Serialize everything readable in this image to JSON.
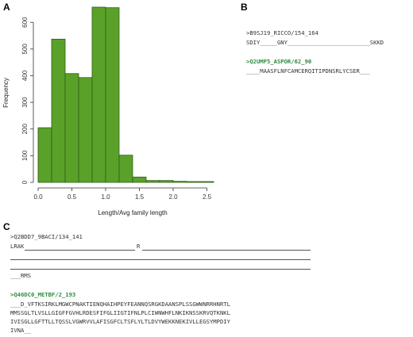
{
  "panels": {
    "a": "A",
    "b": "B",
    "c": "C"
  },
  "chart_data": {
    "type": "bar",
    "title": "",
    "xlabel": "Length/Avg family length",
    "ylabel": "Frequency",
    "xlim": [
      0,
      2.8
    ],
    "ylim": [
      0,
      660
    ],
    "xticks": [
      "0.0",
      "0.5",
      "1.0",
      "1.5",
      "2.0",
      "2.5"
    ],
    "yticks": [
      "0",
      "100",
      "200",
      "300",
      "400",
      "500",
      "600"
    ],
    "bin_edges": [
      0.0,
      0.2,
      0.4,
      0.6,
      0.8,
      1.0,
      1.2,
      1.4,
      1.6,
      1.8,
      2.0,
      2.2,
      2.4,
      2.6
    ],
    "values": [
      205,
      537,
      408,
      393,
      657,
      655,
      102,
      20,
      7,
      7,
      4,
      3,
      3
    ],
    "bar_color": "#5aa12a"
  },
  "panel_b": {
    "seq1_header": ">B9SJ19_RICCO/154_164",
    "seq1_line": "SDIY_____GNY________________________SKKD",
    "seq2_header": ">Q2UMP5_ASPOR/62_90",
    "seq2_line": "____MAASFLNFCAMCERQITIPDNSRLYCSER___"
  },
  "panel_c": {
    "seq1_header": ">Q2BDD7_9BACI/134_141",
    "seq1_line1_a": "LRAK",
    "seq1_line1_b": "R",
    "seq1_line4": "___RMS",
    "seq2_header": ">Q46DC0_METBF/2_193",
    "seq2_lines": [
      "___D_VFTKSIRKLMGWCPNAKTIENQHAIHPEYFEANNQSRGKDAANSPLSSGWWNRRHNRTL",
      "MMSSGLTLVSLLGIGFFGVHLRDESFIFGLIIGTIFNLPLCIWNWHFLNKIKNSSKRVQTKNKL",
      "IVISGLLGFTTLLTQSSLVGWRVVLAFISGFCLTSFLYLTLDVYWEKKNEKIVLLEGSYMPDIY",
      "IVNA__"
    ]
  }
}
